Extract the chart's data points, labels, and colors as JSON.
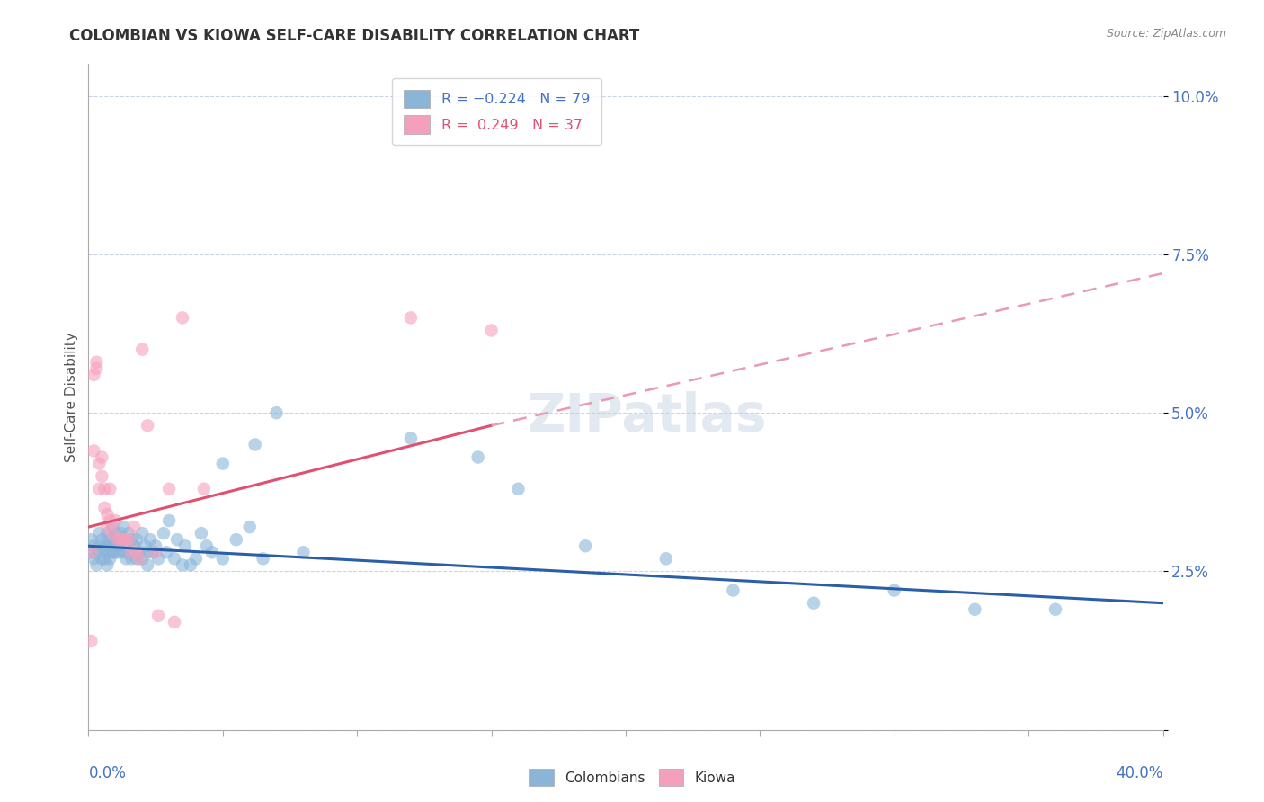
{
  "title": "COLOMBIAN VS KIOWA SELF-CARE DISABILITY CORRELATION CHART",
  "source": "Source: ZipAtlas.com",
  "ylabel": "Self-Care Disability",
  "yticks": [
    0.0,
    0.025,
    0.05,
    0.075,
    0.1
  ],
  "ytick_labels": [
    "",
    "2.5%",
    "5.0%",
    "7.5%",
    "10.0%"
  ],
  "colombian_color": "#8ab4d8",
  "kiowa_color": "#f4a0bc",
  "colombian_line_color": "#2b5ea8",
  "kiowa_line_color": "#e05070",
  "kiowa_dashed_color": "#e898b8",
  "background_color": "#ffffff",
  "grid_color": "#c8d4e8",
  "xlim": [
    0.0,
    0.4
  ],
  "ylim": [
    0.0,
    0.105
  ],
  "colombian_line": [
    0.0,
    0.029,
    0.4,
    0.02
  ],
  "kiowa_line_solid": [
    0.0,
    0.032,
    0.15,
    0.048
  ],
  "kiowa_line_dashed": [
    0.15,
    0.048,
    0.4,
    0.072
  ],
  "colombian_points": [
    [
      0.001,
      0.028
    ],
    [
      0.001,
      0.03
    ],
    [
      0.002,
      0.027
    ],
    [
      0.002,
      0.029
    ],
    [
      0.003,
      0.028
    ],
    [
      0.003,
      0.026
    ],
    [
      0.004,
      0.031
    ],
    [
      0.004,
      0.029
    ],
    [
      0.005,
      0.03
    ],
    [
      0.005,
      0.027
    ],
    [
      0.006,
      0.029
    ],
    [
      0.006,
      0.028
    ],
    [
      0.006,
      0.027
    ],
    [
      0.007,
      0.031
    ],
    [
      0.007,
      0.029
    ],
    [
      0.007,
      0.026
    ],
    [
      0.008,
      0.03
    ],
    [
      0.008,
      0.028
    ],
    [
      0.008,
      0.027
    ],
    [
      0.009,
      0.032
    ],
    [
      0.009,
      0.029
    ],
    [
      0.009,
      0.028
    ],
    [
      0.01,
      0.031
    ],
    [
      0.01,
      0.03
    ],
    [
      0.01,
      0.028
    ],
    [
      0.011,
      0.029
    ],
    [
      0.011,
      0.028
    ],
    [
      0.012,
      0.031
    ],
    [
      0.012,
      0.03
    ],
    [
      0.013,
      0.032
    ],
    [
      0.013,
      0.028
    ],
    [
      0.014,
      0.029
    ],
    [
      0.014,
      0.027
    ],
    [
      0.015,
      0.031
    ],
    [
      0.015,
      0.028
    ],
    [
      0.016,
      0.03
    ],
    [
      0.016,
      0.027
    ],
    [
      0.017,
      0.029
    ],
    [
      0.018,
      0.03
    ],
    [
      0.018,
      0.027
    ],
    [
      0.019,
      0.028
    ],
    [
      0.02,
      0.031
    ],
    [
      0.02,
      0.027
    ],
    [
      0.021,
      0.029
    ],
    [
      0.022,
      0.028
    ],
    [
      0.022,
      0.026
    ],
    [
      0.023,
      0.03
    ],
    [
      0.024,
      0.028
    ],
    [
      0.025,
      0.029
    ],
    [
      0.026,
      0.027
    ],
    [
      0.028,
      0.031
    ],
    [
      0.029,
      0.028
    ],
    [
      0.03,
      0.033
    ],
    [
      0.032,
      0.027
    ],
    [
      0.033,
      0.03
    ],
    [
      0.035,
      0.026
    ],
    [
      0.036,
      0.029
    ],
    [
      0.038,
      0.026
    ],
    [
      0.04,
      0.027
    ],
    [
      0.042,
      0.031
    ],
    [
      0.044,
      0.029
    ],
    [
      0.046,
      0.028
    ],
    [
      0.05,
      0.042
    ],
    [
      0.05,
      0.027
    ],
    [
      0.055,
      0.03
    ],
    [
      0.06,
      0.032
    ],
    [
      0.062,
      0.045
    ],
    [
      0.065,
      0.027
    ],
    [
      0.07,
      0.05
    ],
    [
      0.08,
      0.028
    ],
    [
      0.12,
      0.046
    ],
    [
      0.145,
      0.043
    ],
    [
      0.16,
      0.038
    ],
    [
      0.185,
      0.029
    ],
    [
      0.215,
      0.027
    ],
    [
      0.24,
      0.022
    ],
    [
      0.27,
      0.02
    ],
    [
      0.3,
      0.022
    ],
    [
      0.33,
      0.019
    ],
    [
      0.36,
      0.019
    ]
  ],
  "kiowa_points": [
    [
      0.001,
      0.014
    ],
    [
      0.001,
      0.028
    ],
    [
      0.002,
      0.056
    ],
    [
      0.002,
      0.044
    ],
    [
      0.003,
      0.058
    ],
    [
      0.003,
      0.057
    ],
    [
      0.004,
      0.042
    ],
    [
      0.004,
      0.038
    ],
    [
      0.005,
      0.043
    ],
    [
      0.005,
      0.04
    ],
    [
      0.006,
      0.038
    ],
    [
      0.006,
      0.035
    ],
    [
      0.007,
      0.034
    ],
    [
      0.007,
      0.032
    ],
    [
      0.008,
      0.038
    ],
    [
      0.008,
      0.033
    ],
    [
      0.009,
      0.031
    ],
    [
      0.01,
      0.033
    ],
    [
      0.011,
      0.03
    ],
    [
      0.012,
      0.03
    ],
    [
      0.013,
      0.03
    ],
    [
      0.014,
      0.03
    ],
    [
      0.015,
      0.03
    ],
    [
      0.016,
      0.028
    ],
    [
      0.017,
      0.032
    ],
    [
      0.018,
      0.028
    ],
    [
      0.019,
      0.027
    ],
    [
      0.02,
      0.06
    ],
    [
      0.022,
      0.048
    ],
    [
      0.025,
      0.028
    ],
    [
      0.026,
      0.018
    ],
    [
      0.03,
      0.038
    ],
    [
      0.032,
      0.017
    ],
    [
      0.035,
      0.065
    ],
    [
      0.043,
      0.038
    ],
    [
      0.12,
      0.065
    ],
    [
      0.15,
      0.063
    ]
  ]
}
